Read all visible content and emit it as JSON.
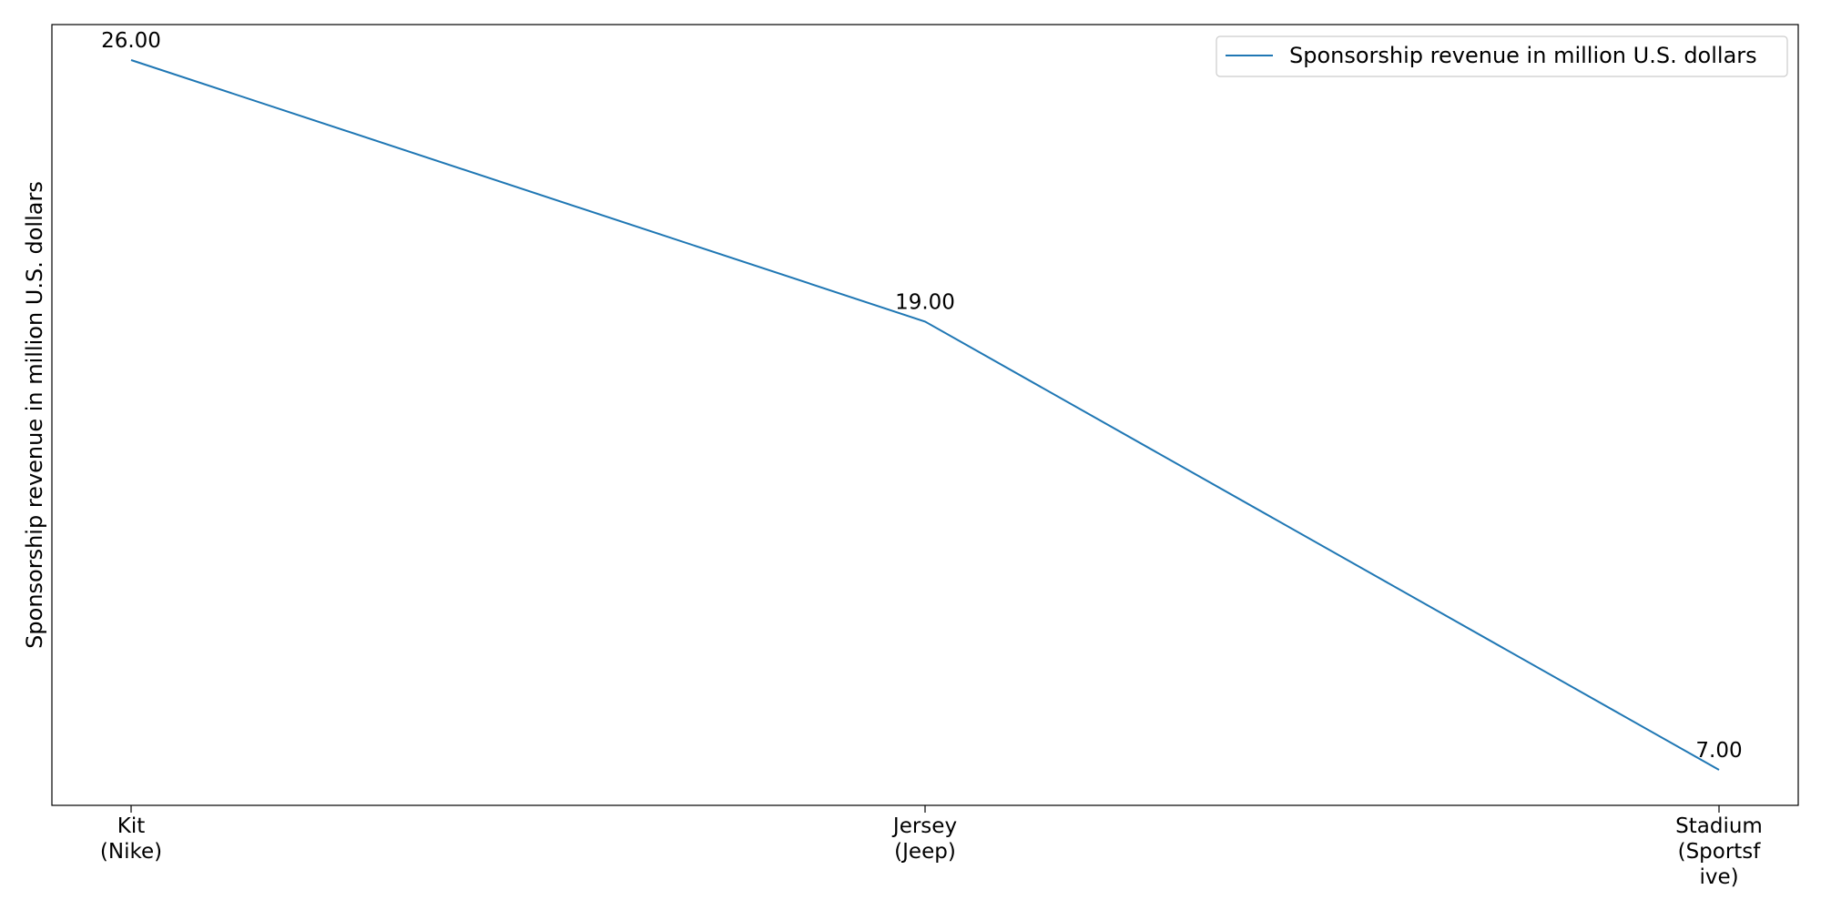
{
  "chart_data": {
    "type": "line",
    "title": "",
    "xlabel": "",
    "ylabel": "Sponsorship revenue in million U.S. dollars",
    "categories": [
      [
        "Kit",
        "(Nike)"
      ],
      [
        "Jersey",
        "(Jeep)"
      ],
      [
        "Stadium",
        "(Sportsf",
        "ive)"
      ]
    ],
    "series": [
      {
        "name": "Sponsorship revenue in million U.S. dollars",
        "values": [
          26,
          19,
          7
        ],
        "labels": [
          "26.00",
          "19.00",
          "7.00"
        ],
        "color": "#1f77b4"
      }
    ],
    "ylim": [
      6.05,
      26.95
    ],
    "grid": false,
    "legend_position": "top-right",
    "y_ticks_visible": false
  }
}
